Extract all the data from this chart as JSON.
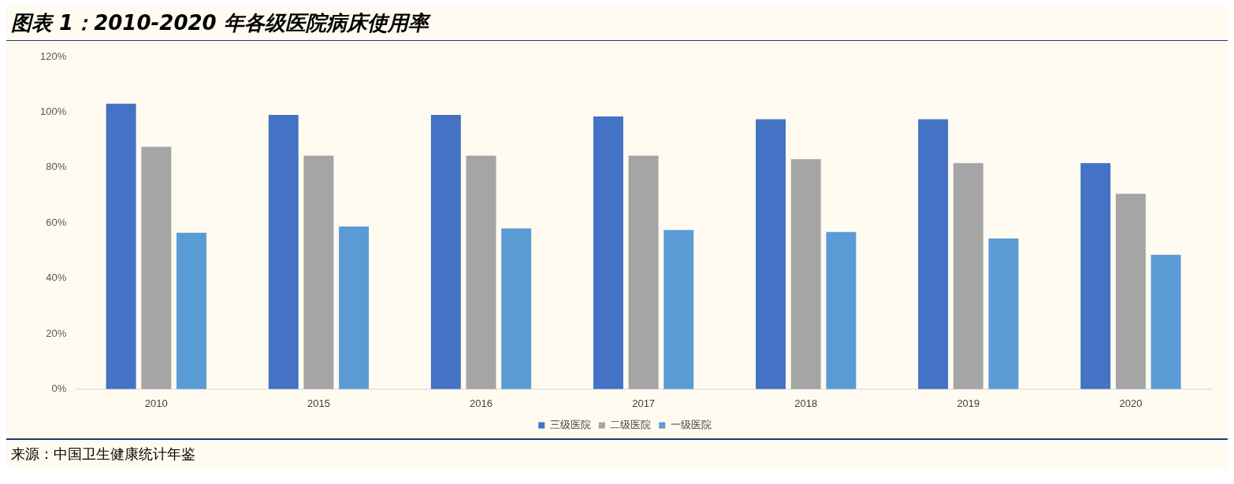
{
  "chart_data": {
    "type": "bar",
    "title": "图表 1：2010-2020 年各级医院病床使用率",
    "categories": [
      "2010",
      "2015",
      "2016",
      "2017",
      "2018",
      "2019",
      "2020"
    ],
    "series": [
      {
        "name": "三级医院",
        "color": "#4472c4",
        "values": [
          103,
          99,
          99,
          98.4,
          97.4,
          97.4,
          81.6
        ]
      },
      {
        "name": "二级医院",
        "color": "#a5a5a5",
        "values": [
          87.5,
          84.3,
          84.3,
          84.3,
          83,
          81.6,
          70.5
        ]
      },
      {
        "name": "一级医院",
        "color": "#5b9bd5",
        "values": [
          56.4,
          58.7,
          58,
          57.4,
          56.7,
          54.4,
          48.5
        ]
      }
    ],
    "ylim": [
      0,
      120
    ],
    "yticks": [
      {
        "value": 0,
        "label": "0%"
      },
      {
        "value": 20,
        "label": "20%"
      },
      {
        "value": 40,
        "label": "40%"
      },
      {
        "value": 60,
        "label": "60%"
      },
      {
        "value": 80,
        "label": "80%"
      },
      {
        "value": 100,
        "label": "100%"
      },
      {
        "value": 120,
        "label": "120%"
      }
    ],
    "grid": false,
    "legend": "bottom",
    "annotations": [
      "来源：中国卫生健康统计年鉴"
    ]
  }
}
